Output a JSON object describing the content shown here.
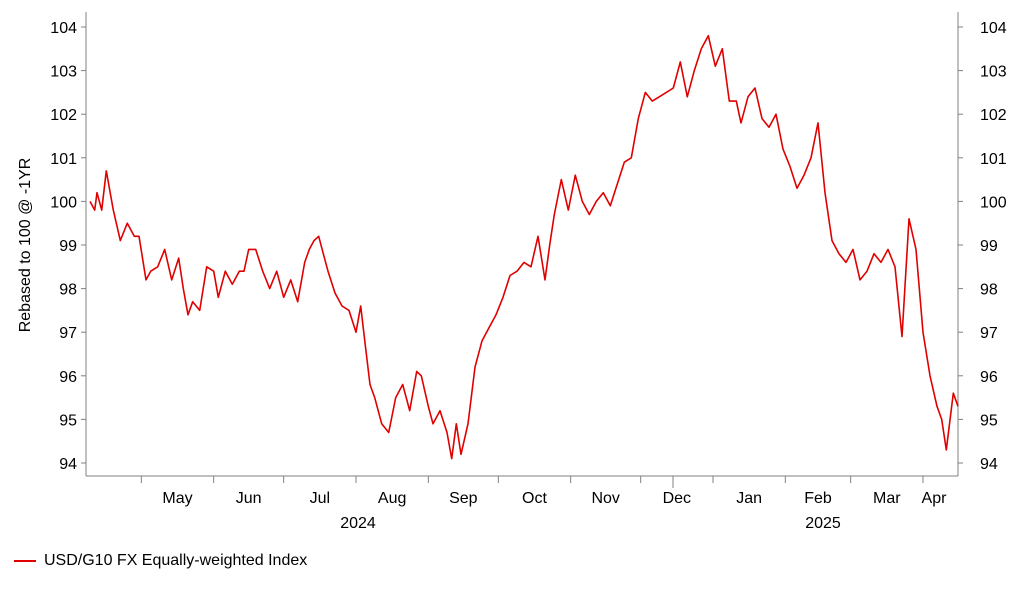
{
  "chart_data": {
    "type": "line",
    "ylabel": "Rebased to 100 @ -1YR",
    "ylim": [
      94,
      104
    ],
    "y_ticks": [
      "94",
      "95",
      "96",
      "97",
      "98",
      "99",
      "100",
      "101",
      "102",
      "103",
      "104"
    ],
    "x_month_labels": [
      "May",
      "Jun",
      "Jul",
      "Aug",
      "Sep",
      "Oct",
      "Nov",
      "Dec",
      "Jan",
      "Feb",
      "Mar",
      "Apr"
    ],
    "x_year_labels": [
      "2024",
      "2025"
    ],
    "grid": false,
    "legend_position": "bottom-left",
    "series": [
      {
        "name": "USD/G10 FX Equally-weighted Index",
        "color": "#e00000",
        "x": [
          "2024-04-09",
          "2024-04-11",
          "2024-04-12",
          "2024-04-14",
          "2024-04-16",
          "2024-04-19",
          "2024-04-22",
          "2024-04-25",
          "2024-04-28",
          "2024-04-30",
          "2024-05-03",
          "2024-05-05",
          "2024-05-08",
          "2024-05-11",
          "2024-05-14",
          "2024-05-17",
          "2024-05-19",
          "2024-05-21",
          "2024-05-23",
          "2024-05-26",
          "2024-05-29",
          "2024-06-01",
          "2024-06-03",
          "2024-06-06",
          "2024-06-09",
          "2024-06-12",
          "2024-06-14",
          "2024-06-16",
          "2024-06-19",
          "2024-06-22",
          "2024-06-25",
          "2024-06-28",
          "2024-07-01",
          "2024-07-04",
          "2024-07-07",
          "2024-07-10",
          "2024-07-12",
          "2024-07-14",
          "2024-07-16",
          "2024-07-18",
          "2024-07-20",
          "2024-07-23",
          "2024-07-26",
          "2024-07-29",
          "2024-08-01",
          "2024-08-03",
          "2024-08-05",
          "2024-08-07",
          "2024-08-09",
          "2024-08-12",
          "2024-08-15",
          "2024-08-18",
          "2024-08-21",
          "2024-08-24",
          "2024-08-27",
          "2024-08-29",
          "2024-09-01",
          "2024-09-03",
          "2024-09-06",
          "2024-09-09",
          "2024-09-11",
          "2024-09-13",
          "2024-09-15",
          "2024-09-18",
          "2024-09-21",
          "2024-09-24",
          "2024-09-27",
          "2024-09-30",
          "2024-10-03",
          "2024-10-06",
          "2024-10-09",
          "2024-10-12",
          "2024-10-15",
          "2024-10-18",
          "2024-10-21",
          "2024-10-23",
          "2024-10-25",
          "2024-10-28",
          "2024-10-31",
          "2024-11-03",
          "2024-11-06",
          "2024-11-09",
          "2024-11-12",
          "2024-11-15",
          "2024-11-18",
          "2024-11-21",
          "2024-11-24",
          "2024-11-27",
          "2024-11-30",
          "2024-12-03",
          "2024-12-06",
          "2024-12-09",
          "2024-12-12",
          "2024-12-15",
          "2024-12-18",
          "2024-12-21",
          "2024-12-24",
          "2024-12-27",
          "2024-12-30",
          "2025-01-02",
          "2025-01-05",
          "2025-01-08",
          "2025-01-11",
          "2025-01-13",
          "2025-01-16",
          "2025-01-19",
          "2025-01-22",
          "2025-01-25",
          "2025-01-28",
          "2025-01-31",
          "2025-02-03",
          "2025-02-06",
          "2025-02-09",
          "2025-02-12",
          "2025-02-15",
          "2025-02-18",
          "2025-02-21",
          "2025-02-24",
          "2025-02-27",
          "2025-03-02",
          "2025-03-05",
          "2025-03-08",
          "2025-03-11",
          "2025-03-14",
          "2025-03-17",
          "2025-03-20",
          "2025-03-23",
          "2025-03-26",
          "2025-03-29",
          "2025-04-01",
          "2025-04-04",
          "2025-04-07",
          "2025-04-09",
          "2025-04-11",
          "2025-04-14",
          "2025-04-16"
        ],
        "values": [
          100.0,
          99.8,
          100.2,
          99.8,
          100.7,
          99.8,
          99.1,
          99.5,
          99.2,
          99.2,
          98.2,
          98.4,
          98.5,
          98.9,
          98.2,
          98.7,
          98.0,
          97.4,
          97.7,
          97.5,
          98.5,
          98.4,
          97.8,
          98.4,
          98.1,
          98.4,
          98.4,
          98.9,
          98.9,
          98.4,
          98.0,
          98.4,
          97.8,
          98.2,
          97.7,
          98.6,
          98.9,
          99.1,
          99.2,
          98.8,
          98.4,
          97.9,
          97.6,
          97.5,
          97.0,
          97.6,
          96.7,
          95.8,
          95.5,
          94.9,
          94.7,
          95.5,
          95.8,
          95.2,
          96.1,
          96.0,
          95.3,
          94.9,
          95.2,
          94.7,
          94.1,
          94.9,
          94.2,
          94.9,
          96.2,
          96.8,
          97.1,
          97.4,
          97.8,
          98.3,
          98.4,
          98.6,
          98.5,
          99.2,
          98.2,
          99.0,
          99.7,
          100.5,
          99.8,
          100.6,
          100.0,
          99.7,
          100.0,
          100.2,
          99.9,
          100.4,
          100.9,
          101.0,
          101.9,
          102.5,
          102.3,
          102.4,
          102.5,
          102.6,
          103.2,
          102.4,
          103.0,
          103.5,
          103.8,
          103.1,
          103.5,
          102.3,
          102.3,
          101.8,
          102.4,
          102.6,
          101.9,
          101.7,
          102.0,
          101.2,
          100.8,
          100.3,
          100.6,
          101.0,
          101.8,
          100.2,
          99.1,
          98.8,
          98.6,
          98.9,
          98.2,
          98.4,
          98.8,
          98.6,
          98.9,
          98.5,
          96.9,
          99.6,
          98.9,
          97.0,
          96.0,
          95.3,
          95.0,
          94.3,
          95.6,
          95.3
        ]
      }
    ]
  }
}
